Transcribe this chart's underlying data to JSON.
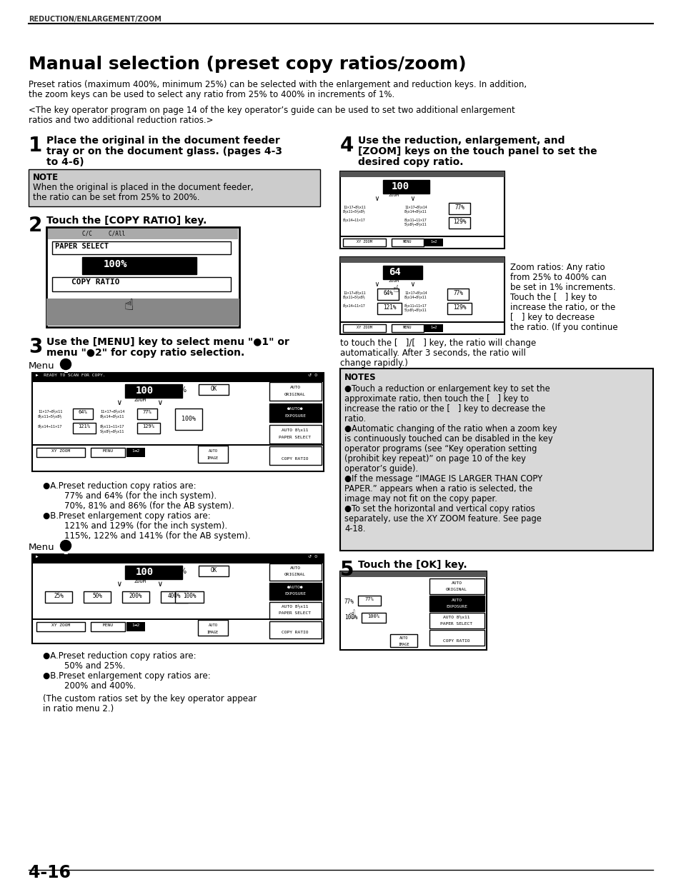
{
  "page_header": "REDUCTION/ENLARGEMENT/ZOOM",
  "title": "Manual selection (preset copy ratios/zoom)",
  "intro1": "Preset ratios (maximum 400%, minimum 25%) can be selected with the enlargement and reduction keys. In addition,",
  "intro2": "the zoom keys can be used to select any ratio from 25% to 400% in increments of 1%.",
  "note_bracket1": "<The key operator program on page 14 of the key operator’s guide can be used to set two additional enlargement",
  "note_bracket2": "ratios and two additional reduction ratios.>",
  "step1_line1": "Place the original in the document feeder",
  "step1_line2": "tray or on the document glass. (pages 4-3",
  "step1_line3": "to 4-6)",
  "note_title": "NOTE",
  "note_line1": "When the original is placed in the document feeder,",
  "note_line2": "the ratio can be set from 25% to 200%.",
  "step2_text": "Touch the [COPY RATIO] key.",
  "step3_line1": "Use the [MENU] key to select menu \"●1\" or",
  "step3_line2": "menu \"●2\" for copy ratio selection.",
  "menu1_label": "Menu",
  "menu2_label": "Menu",
  "step4_line1": "Use the reduction, enlargement, and",
  "step4_line2": "[ZOOM] keys on the touch panel to set the",
  "step4_line3": "desired copy ratio.",
  "step5_text": "Touch the [OK] key.",
  "bullet_a1": "●A.Preset reduction copy ratios are:",
  "bullet_a1_1": "77% and 64% (for the inch system).",
  "bullet_a1_2": "70%, 81% and 86% (for the AB system).",
  "bullet_b1": "●B.Preset enlargement copy ratios are:",
  "bullet_b1_1": "121% and 129% (for the inch system).",
  "bullet_b1_2": "115%, 122% and 141% (for the AB system).",
  "bullet_a2": "●A.Preset reduction copy ratios are:",
  "bullet_a2_1": "50% and 25%.",
  "bullet_b2": "●B.Preset enlargement copy ratios are:",
  "bullet_b2_1": "200% and 400%.",
  "custom_note1": "(The custom ratios set by the key operator appear",
  "custom_note2": "in ratio menu 2.)",
  "zoom_text1": "Zoom ratios: Any ratio",
  "zoom_text2": "from 25% to 400% can",
  "zoom_text3": "be set in 1% increments.",
  "zoom_text4": "Touch the [   ] key to",
  "zoom_text5": "increase the ratio, or the",
  "zoom_text6": "[   ] key to decrease",
  "zoom_text7": "the ratio. (If you continue",
  "zoom_text8": "to touch the [   ]/[   ] key, the ratio will change",
  "zoom_text9": "automatically. After 3 seconds, the ratio will",
  "zoom_text10": "change rapidly.)",
  "notes_title": "NOTES",
  "note1_1": "●Touch a reduction or enlargement key to set the",
  "note1_2": "approximate ratio, then touch the [   ] key to",
  "note1_3": "increase the ratio or the [   ] key to decrease the",
  "note1_4": "ratio.",
  "note2_1": "●Automatic changing of the ratio when a zoom key",
  "note2_2": "is continuously touched can be disabled in the key",
  "note2_3": "operator programs (see “Key operation setting",
  "note2_4": "(prohibit key repeat)” on page 10 of the key",
  "note2_5": "operator’s guide).",
  "note3_1": "●If the message “IMAGE IS LARGER THAN COPY",
  "note3_2": "PAPER.” appears when a ratio is selected, the",
  "note3_3": "image may not fit on the copy paper.",
  "note4_1": "●To set the horizontal and vertical copy ratios",
  "note4_2": "separately, use the XY ZOOM feature. See page",
  "note4_3": "4-18.",
  "page_number": "4-16",
  "bg_color": "#ffffff",
  "note_bg": "#cccccc",
  "notes_bg": "#d8d8d8"
}
